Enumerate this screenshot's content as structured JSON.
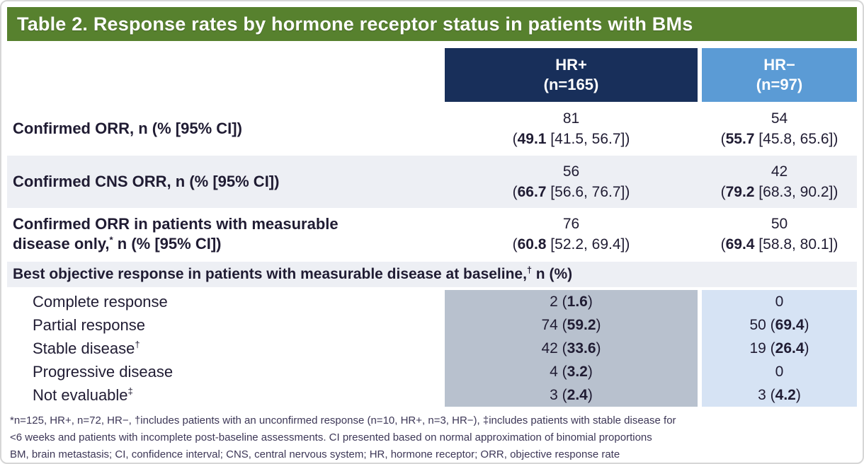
{
  "title": "Table 2. Response rates by hormone receptor status in patients with BMs",
  "colors": {
    "title_bg": "#57812e",
    "hrp_header_bg": "#182f5a",
    "hrn_header_bg": "#5b9bd5",
    "row_alt_bg": "#edeff4",
    "hrp_cell_bg": "#b8c1ce",
    "hrn_cell_bg": "#d6e3f4"
  },
  "columns": {
    "hrp": {
      "name": "HR+",
      "n": "(n=165)"
    },
    "hrn": {
      "name": "HR−",
      "n": "(n=97)"
    }
  },
  "rows": [
    {
      "label": "Confirmed ORR, n (% [95% CI])",
      "sup": "",
      "label_rest": "",
      "hrp": {
        "count": "81",
        "pre": "(",
        "bold": "49.1",
        "post": " [41.5, 56.7])"
      },
      "hrn": {
        "count": "54",
        "pre": "(",
        "bold": "55.7",
        "post": " [45.8, 65.6])"
      }
    },
    {
      "label": "Confirmed CNS ORR, n (% [95% CI])",
      "sup": "",
      "label_rest": "",
      "hrp": {
        "count": "56",
        "pre": "(",
        "bold": "66.7",
        "post": " [56.6, 76.7])"
      },
      "hrn": {
        "count": "42",
        "pre": "(",
        "bold": "79.2",
        "post": " [68.3, 90.2])"
      }
    },
    {
      "label": "Confirmed ORR in patients with measurable disease only,",
      "sup": "*",
      "label_rest": " n (% [95% CI])",
      "hrp": {
        "count": "76",
        "pre": "(",
        "bold": "60.8",
        "post": " [52.2, 69.4])"
      },
      "hrn": {
        "count": "50",
        "pre": "(",
        "bold": "69.4",
        "post": " [58.8, 80.1])"
      }
    }
  ],
  "section_header": {
    "label": "Best objective response in patients with measurable disease at baseline,",
    "sup": "†",
    "label_rest": " n (%)"
  },
  "sub_rows": [
    {
      "label": "Complete response",
      "sup": "",
      "hrp": {
        "pre": "2 (",
        "bold": "1.6",
        "post": ")"
      },
      "hrn": {
        "pre": "0",
        "bold": "",
        "post": ""
      }
    },
    {
      "label": "Partial response",
      "sup": "",
      "hrp": {
        "pre": "74 (",
        "bold": "59.2",
        "post": ")"
      },
      "hrn": {
        "pre": "50 (",
        "bold": "69.4",
        "post": ")"
      }
    },
    {
      "label": "Stable disease",
      "sup": "†",
      "hrp": {
        "pre": "42 (",
        "bold": "33.6",
        "post": ")"
      },
      "hrn": {
        "pre": "19 (",
        "bold": "26.4",
        "post": ")"
      }
    },
    {
      "label": "Progressive disease",
      "sup": "",
      "hrp": {
        "pre": "4 (",
        "bold": "3.2",
        "post": ")"
      },
      "hrn": {
        "pre": "0",
        "bold": "",
        "post": ""
      }
    },
    {
      "label": "Not evaluable",
      "sup": "‡",
      "hrp": {
        "pre": "3 (",
        "bold": "2.4",
        "post": ")"
      },
      "hrn": {
        "pre": "3 (",
        "bold": "4.2",
        "post": ")"
      }
    }
  ],
  "footnotes": [
    "*n=125, HR+, n=72, HR−, †includes patients with an unconfirmed response (n=10, HR+, n=3, HR−), ‡includes patients with stable disease for",
    "<6 weeks and patients with incomplete post-baseline assessments. CI presented based on normal approximation of binomial proportions",
    "BM, brain metastasis; CI, confidence interval; CNS, central nervous system; HR, hormone receptor; ORR, objective response rate"
  ]
}
